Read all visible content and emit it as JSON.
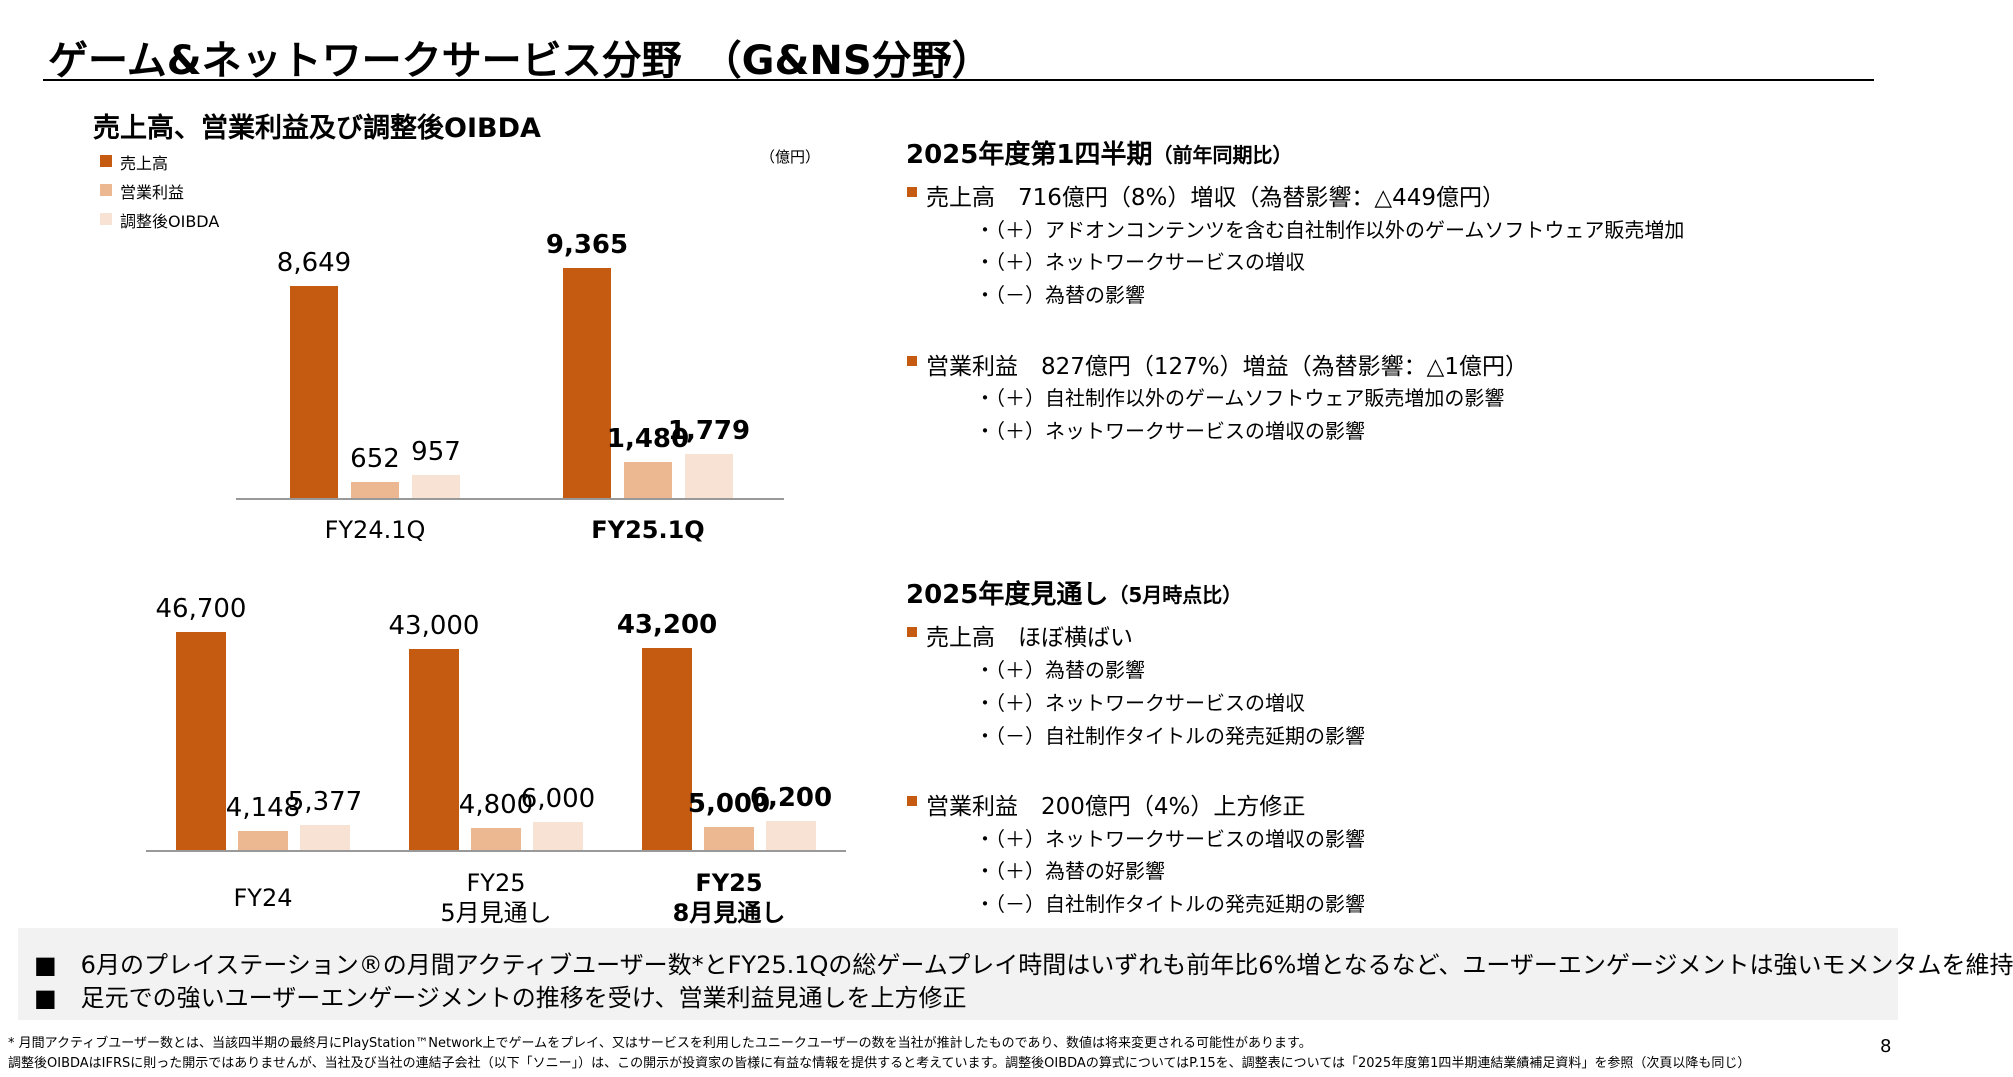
{
  "header": {
    "title": "ゲーム&ネットワークサービス分野　（G&NS分野）"
  },
  "chart_heading": "売上高、営業利益及び調整後OIBDA",
  "chart_data": [
    {
      "type": "bar",
      "unit": "（億円）",
      "categories": [
        "FY24.1Q",
        "FY25.1Q"
      ],
      "series": [
        {
          "name": "売上高",
          "color": "#c55a11",
          "values": [
            8649,
            9365
          ],
          "value_labels": [
            "8,649",
            "9,365"
          ]
        },
        {
          "name": "営業利益",
          "color": "#ebb892",
          "values": [
            652,
            1480
          ],
          "value_labels": [
            "652",
            "1,480"
          ]
        },
        {
          "name": "調整後OIBDA",
          "color": "#f8e2d4",
          "values": [
            957,
            1779
          ],
          "value_labels": [
            "957",
            "1,779"
          ]
        }
      ]
    },
    {
      "type": "bar",
      "categories": [
        "FY24",
        "FY25\n5月見通し",
        "FY25\n8月見通し"
      ],
      "series": [
        {
          "color": "#c55a11",
          "values": [
            46700,
            43000,
            43200
          ],
          "value_labels": [
            "46,700",
            "43,000",
            "43,200"
          ]
        },
        {
          "color": "#ebb892",
          "values": [
            4148,
            4800,
            5000
          ],
          "value_labels": [
            "4,148",
            "4,800",
            "5,000"
          ]
        },
        {
          "color": "#f8e2d4",
          "values": [
            5377,
            6000,
            6200
          ],
          "value_labels": [
            "5,377",
            "6,000",
            "6,200"
          ]
        }
      ]
    }
  ],
  "sections": [
    {
      "heading": "2025年度第1四半期",
      "note": "（前年同期比）",
      "items": [
        {
          "text": "売上高　716億円（8%）増収（為替影響：△449億円）",
          "subs": [
            "・（＋）アドオンコンテンツを含む自社制作以外のゲームソフトウェア販売増加",
            "・（＋）ネットワークサービスの増収",
            "・（－）為替の影響"
          ]
        },
        {
          "text": "営業利益　827億円（127%）増益（為替影響：△1億円）",
          "subs": [
            "・（＋）自社制作以外のゲームソフトウェア販売増加の影響",
            "・（＋）ネットワークサービスの増収の影響"
          ]
        }
      ]
    },
    {
      "heading": "2025年度見通し",
      "note": "（5月時点比）",
      "items": [
        {
          "text": "売上高　ほぼ横ばい",
          "subs": [
            "・（＋）為替の影響",
            "・（＋）ネットワークサービスの増収",
            "・（－）自社制作タイトルの発売延期の影響"
          ]
        },
        {
          "text": "営業利益　200億円（4%）上方修正",
          "subs": [
            "・（＋）ネットワークサービスの増収の影響",
            "・（＋）為替の好影響",
            "・（－）自社制作タイトルの発売延期の影響"
          ]
        }
      ]
    }
  ],
  "summary": [
    "■　6月のプレイステーション®の月間アクティブユーザー数*とFY25.1Qの総ゲームプレイ時間はいずれも前年比6%増となるなど、ユーザーエンゲージメントは強いモメンタムを維持",
    "■　足元での強いユーザーエンゲージメントの推移を受け、営業利益見通しを上方修正"
  ],
  "footnotes": [
    "* 月間アクティブユーザー数とは、当該四半期の最終月にPlayStation™Network上でゲームをプレイ、又はサービスを利用したユニークユーザーの数を当社が推計したものであり、数値は将来変更される可能性があります。",
    "調整後OIBDAはIFRSに則った開示ではありませんが、当社及び当社の連結子会社（以下「ソニー」）は、この開示が投資家の皆様に有益な情報を提供すると考えています。調整後OIBDAの算式についてはP.15を、調整表については「2025年度第1四半期連結業績補足資料」を参照（次頁以降も同じ）"
  ],
  "page_number": "8"
}
